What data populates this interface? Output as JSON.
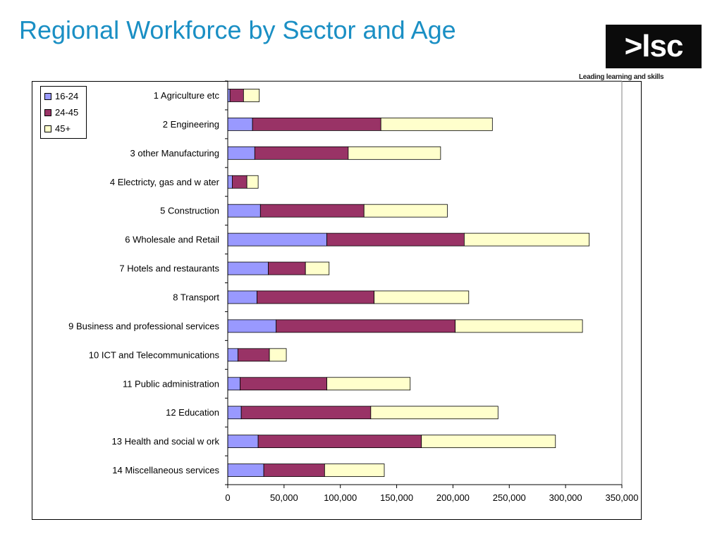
{
  "slide": {
    "title": "Regional Workforce by Sector and Age",
    "logo_text": ">lsc",
    "logo_tagline": "Leading learning and skills"
  },
  "chart_data": {
    "type": "bar",
    "orientation": "horizontal",
    "stacked": true,
    "title": "",
    "xlabel": "",
    "ylabel": "",
    "xlim": [
      0,
      350000
    ],
    "x_ticks": [
      0,
      50000,
      100000,
      150000,
      200000,
      250000,
      300000,
      350000
    ],
    "x_tick_labels": [
      "0",
      "50,000",
      "100,000",
      "150,000",
      "200,000",
      "250,000",
      "300,000",
      "350,000"
    ],
    "grid": false,
    "legend_position": "top-left",
    "categories": [
      "1 Agriculture etc",
      "2 Engineering",
      "3 other Manufacturing",
      "4 Electricty, gas and w ater",
      "5 Construction",
      "6 Wholesale and Retail",
      "7 Hotels and restaurants",
      "8 Transport",
      "9 Business and professional services",
      "10 ICT and Telecommunications",
      "11 Public administration",
      "12 Education",
      "13 Health and social w ork",
      "14 Miscellaneous services"
    ],
    "series": [
      {
        "name": "16-24",
        "color": "#9999ff",
        "values": [
          2000,
          22000,
          24000,
          4000,
          29000,
          88000,
          36000,
          26000,
          43000,
          9000,
          11000,
          12000,
          27000,
          32000
        ]
      },
      {
        "name": "24-45",
        "color": "#993366",
        "values": [
          12000,
          114000,
          83000,
          13000,
          92000,
          122000,
          33000,
          104000,
          159000,
          28000,
          77000,
          115000,
          145000,
          54000
        ]
      },
      {
        "name": "45+",
        "color": "#ffffcc",
        "values": [
          14000,
          99000,
          82000,
          10000,
          74000,
          111000,
          21000,
          84000,
          113000,
          15000,
          74000,
          113000,
          119000,
          53000
        ]
      }
    ]
  }
}
